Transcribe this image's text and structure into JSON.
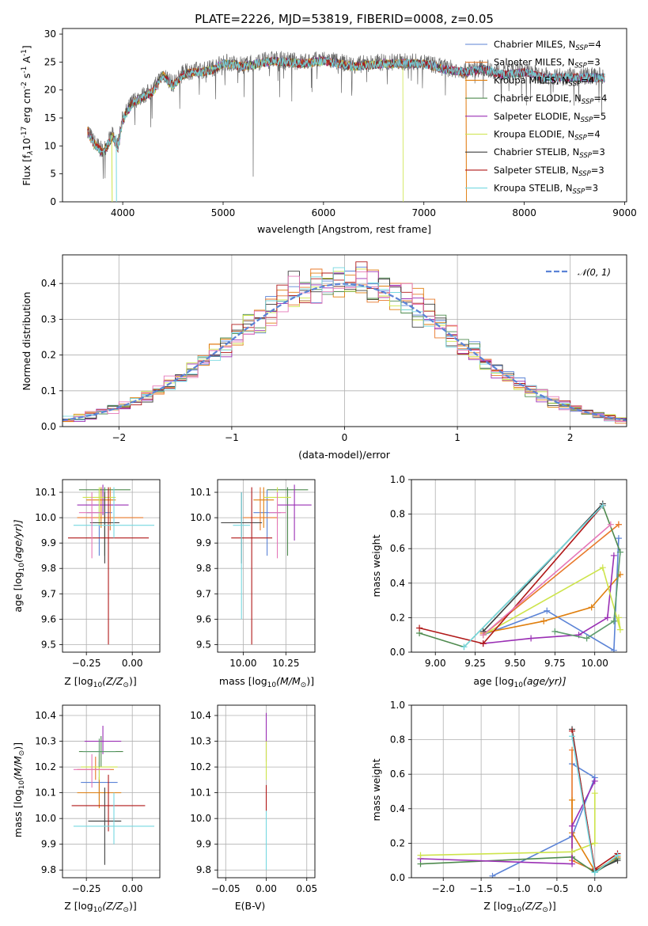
{
  "figure": {
    "title": "PLATE=2226, MJD=53819, FIBERID=0008, z=0.05"
  },
  "colors": {
    "Chabrier MILES": "#5b83d6",
    "Salpeter MILES": "#e8782a",
    "Kroupa MILES": "#e07f0e",
    "Chabrier ELODIE": "#4e8a4e",
    "Salpeter ELODIE": "#9a2fb4",
    "Kroupa ELODIE": "#cde44b",
    "Chabrier STELIB": "#3f3f3f",
    "Salpeter STELIB": "#b01818",
    "Kroupa STELIB": "#76d8e0",
    "normal": "#5b83d6",
    "hist_pink": "#e577b8"
  },
  "spectrum": {
    "xlabel": "wavelength [Angstrom, rest frame]",
    "ylabel_main": "Flux [f",
    "ylabel_rest": "10",
    "ylabel_exp": "-17",
    "ylabel_units": " erg cm",
    "ylabel_units_exp": "-2",
    "ylabel_s": " s",
    "ylabel_s_exp": "-1",
    "ylabel_A": " A",
    "ylabel_A_exp": "-1",
    "ylabel_end": "]",
    "legend": [
      {
        "name": "Chabrier MILES, N",
        "sub": "SSP",
        "suffix": "=4"
      },
      {
        "name": "Salpeter MILES, N",
        "sub": "SSP",
        "suffix": "=3"
      },
      {
        "name": "Kroupa MILES, N",
        "sub": "SSP",
        "suffix": "=4"
      },
      {
        "name": "Chabrier ELODIE, N",
        "sub": "SSP",
        "suffix": "=4"
      },
      {
        "name": "Salpeter ELODIE, N",
        "sub": "SSP",
        "suffix": "=5"
      },
      {
        "name": "Kroupa ELODIE, N",
        "sub": "SSP",
        "suffix": "=4"
      },
      {
        "name": "Chabrier STELIB, N",
        "sub": "SSP",
        "suffix": "=3"
      },
      {
        "name": "Salpeter STELIB, N",
        "sub": "SSP",
        "suffix": "=3"
      },
      {
        "name": "Kroupa STELIB, N",
        "sub": "SSP",
        "suffix": "=3"
      }
    ]
  },
  "residuals": {
    "xlabel": "(data-model)/error",
    "ylabel": "Normed distribution",
    "legend": "𝒩(0, 1)"
  },
  "small_labels": {
    "age_y": "age  [log",
    "age_y_sub": "10",
    "age_y_end": "(age/yr)]",
    "z_x": "Z [log",
    "z_x_sub": "10",
    "z_x_end": "(Z/Z",
    "z_x_close": ")]",
    "mass_x": "mass [log",
    "mass_x_sub": "10",
    "mass_x_end": "(M/M",
    "mass_x_close": ")]",
    "mw_y": "mass weight",
    "age_x": "age  [log",
    "age_x_sub": "10",
    "age_x_end": "(age/yr)]",
    "ebv_x": "E(B-V)",
    "mass_y": "mass [log",
    "mass_y_sub": "10",
    "mass_y_end": "(M/M",
    "mass_y_close": ")]",
    "z_x2": "Z [log",
    "z_x2_sub": "10",
    "z_x2_end": "(Z/Z",
    "z_x2_close": ")]"
  },
  "chart_data": [
    {
      "type": "line",
      "title": "PLATE=2226, MJD=53819, FIBERID=0008, z=0.05",
      "xlabel": "wavelength [Angstrom, rest frame]",
      "ylabel": "Flux [f_lambda 10^-17 erg cm^-2 s^-1 A^-1]",
      "xlim": [
        3400,
        9020
      ],
      "ylim": [
        0,
        31
      ],
      "xticks": [
        4000,
        5000,
        6000,
        7000,
        8000,
        9000
      ],
      "yticks": [
        0,
        5,
        10,
        15,
        20,
        25,
        30
      ],
      "grid": false,
      "legend_position": "top-right",
      "spectrum_envelope": {
        "x": [
          3650,
          3700,
          3800,
          3900,
          3950,
          4000,
          4100,
          4200,
          4300,
          4400,
          4500,
          4600,
          4700,
          4800,
          4900,
          5000,
          5200,
          5500,
          5800,
          6000,
          6300,
          6600,
          7000,
          7200,
          7400,
          7600,
          7800,
          8000,
          8200,
          8500,
          8800
        ],
        "y": [
          13,
          11,
          9,
          12,
          10,
          15,
          18,
          19,
          20,
          23,
          21,
          23,
          23.5,
          23.5,
          24,
          25,
          24.5,
          25.5,
          25,
          25.5,
          24.5,
          25,
          25,
          24,
          23.5,
          24,
          23,
          23.5,
          22.5,
          22.5,
          22.5
        ]
      },
      "model_cutoffs": [
        {
          "series": "Kroupa ELODIE",
          "x_end": 6790
        },
        {
          "series": "Kroupa MILES",
          "x_end": 7420
        },
        {
          "series": "Salpeter MILES",
          "x_end": 7420
        }
      ],
      "series": [
        {
          "name": "Chabrier MILES, N_SSP=4"
        },
        {
          "name": "Salpeter MILES, N_SSP=3"
        },
        {
          "name": "Kroupa MILES, N_SSP=4"
        },
        {
          "name": "Chabrier ELODIE, N_SSP=4"
        },
        {
          "name": "Salpeter ELODIE, N_SSP=5"
        },
        {
          "name": "Kroupa ELODIE, N_SSP=4"
        },
        {
          "name": "Chabrier STELIB, N_SSP=3"
        },
        {
          "name": "Salpeter STELIB, N_SSP=3"
        },
        {
          "name": "Kroupa STELIB, N_SSP=3"
        }
      ]
    },
    {
      "type": "line",
      "xlabel": "(data-model)/error",
      "ylabel": "Normed distribution",
      "xlim": [
        -2.5,
        2.5
      ],
      "ylim": [
        0,
        0.48
      ],
      "xticks": [
        -2,
        -1,
        0,
        1,
        2
      ],
      "yticks": [
        0.0,
        0.1,
        0.2,
        0.3,
        0.4
      ],
      "grid": true,
      "legend_position": "top-right",
      "series": [
        {
          "name": "N(0,1)",
          "style": "dashed",
          "kind": "gaussian",
          "mu": 0,
          "sigma": 1
        }
      ],
      "histograms": {
        "bin_width": 0.1,
        "x_start": -2.5,
        "note_series": "9 step histograms, one per model"
      }
    },
    {
      "type": "scatter",
      "xlabel": "Z [log10(Z/Zsun)]",
      "ylabel": "age [log10(age/yr)]",
      "xlim": [
        -0.38,
        0.15
      ],
      "ylim": [
        9.47,
        10.15
      ],
      "xticks": [
        -0.25,
        0.0
      ],
      "xticklabels": [
        "−0.25",
        "0.00"
      ],
      "yticks": [
        9.5,
        9.6,
        9.7,
        9.8,
        9.9,
        10.0,
        10.1
      ],
      "grid": true,
      "points": [
        {
          "series": "Chabrier MILES",
          "x": -0.18,
          "xerr": 0.07,
          "y": 10.02,
          "ylo": 9.85,
          "yhi": 10.11
        },
        {
          "series": "Salpeter MILES",
          "x": -0.12,
          "xerr": 0.18,
          "y": 10.0,
          "ylo": 9.95,
          "yhi": 10.12
        },
        {
          "series": "Kroupa MILES",
          "x": -0.17,
          "xerr": 0.08,
          "y": 10.07,
          "ylo": 9.96,
          "yhi": 10.12
        },
        {
          "series": "Chabrier ELODIE",
          "x": -0.15,
          "xerr": 0.14,
          "y": 10.11,
          "ylo": 9.85,
          "yhi": 10.12
        },
        {
          "series": "Salpeter ELODIE",
          "x": -0.16,
          "xerr": 0.14,
          "y": 10.05,
          "ylo": 10.01,
          "yhi": 10.13
        },
        {
          "series": "Kroupa ELODIE",
          "x": -0.18,
          "xerr": 0.09,
          "y": 10.08,
          "ylo": 9.97,
          "yhi": 10.12
        },
        {
          "series": "Chabrier STELIB",
          "x": -0.15,
          "xerr": 0.08,
          "y": 9.98,
          "ylo": 9.82,
          "yhi": 10.1
        },
        {
          "series": "Salpeter STELIB",
          "x": -0.13,
          "xerr": 0.22,
          "y": 9.92,
          "ylo": 9.5,
          "yhi": 10.12
        },
        {
          "series": "Kroupa STELIB",
          "x": -0.1,
          "xerr": 0.22,
          "y": 9.97,
          "ylo": 9.92,
          "yhi": 10.12
        },
        {
          "series": "Salpeter MILES pink",
          "x": -0.22,
          "xerr": 0.07,
          "y": 10.02,
          "ylo": 9.84,
          "yhi": 10.1
        }
      ]
    },
    {
      "type": "scatter",
      "xlabel": "mass [log10(M/Msun)]",
      "xlim": [
        9.85,
        10.42
      ],
      "ylim": [
        9.47,
        10.15
      ],
      "xticks": [
        10.0,
        10.25
      ],
      "xticklabels": [
        "10.00",
        "10.25"
      ],
      "yticks": [
        9.5,
        9.6,
        9.7,
        9.8,
        9.9,
        10.0,
        10.1
      ],
      "grid": true,
      "points": [
        {
          "series": "Chabrier MILES",
          "x": 10.14,
          "xerr": 0.08,
          "y": 10.02,
          "ylo": 9.85,
          "yhi": 10.11
        },
        {
          "series": "Salpeter MILES",
          "x": 10.1,
          "xerr": 0.1,
          "y": 10.0,
          "ylo": 9.95,
          "yhi": 10.12
        },
        {
          "series": "Kroupa MILES",
          "x": 10.12,
          "xerr": 0.06,
          "y": 10.07,
          "ylo": 9.96,
          "yhi": 10.12
        },
        {
          "series": "Chabrier ELODIE",
          "x": 10.26,
          "xerr": 0.12,
          "y": 10.11,
          "ylo": 9.85,
          "yhi": 10.12
        },
        {
          "series": "Salpeter ELODIE",
          "x": 10.3,
          "xerr": 0.1,
          "y": 10.05,
          "ylo": 9.91,
          "yhi": 10.13
        },
        {
          "series": "Kroupa ELODIE",
          "x": 10.2,
          "xerr": 0.08,
          "y": 10.08,
          "ylo": 9.97,
          "yhi": 10.12
        },
        {
          "series": "Chabrier STELIB",
          "x": 9.99,
          "xerr": 0.12,
          "y": 9.98,
          "ylo": 9.82,
          "yhi": 10.1
        },
        {
          "series": "Salpeter STELIB",
          "x": 10.05,
          "xerr": 0.12,
          "y": 9.92,
          "ylo": 9.5,
          "yhi": 10.12
        },
        {
          "series": "Kroupa STELIB",
          "x": 9.99,
          "xerr": 0.05,
          "y": 9.97,
          "ylo": 9.6,
          "yhi": 10.1
        },
        {
          "series": "pink",
          "x": 10.2,
          "xerr": 0.05,
          "y": 10.02,
          "ylo": 9.84,
          "yhi": 10.1
        }
      ]
    },
    {
      "type": "line",
      "xlabel": "age [log10(age/yr)]",
      "ylabel": "mass weight",
      "xlim": [
        8.85,
        10.2
      ],
      "ylim": [
        0,
        1.0
      ],
      "xticks": [
        9.0,
        9.25,
        9.5,
        9.75,
        10.0
      ],
      "xticklabels": [
        "9.00",
        "9.25",
        "9.50",
        "9.75",
        "10.00"
      ],
      "yticks": [
        0.0,
        0.2,
        0.4,
        0.6,
        0.8,
        1.0
      ],
      "grid": true,
      "series": [
        {
          "name": "Chabrier MILES",
          "x": [
            9.3,
            9.7,
            10.12,
            10.15
          ],
          "y": [
            0.1,
            0.24,
            0.01,
            0.66
          ]
        },
        {
          "name": "Salpeter MILES",
          "x": [
            9.3,
            10.15,
            10.15
          ],
          "y": [
            0.1,
            0.74,
            0.74
          ]
        },
        {
          "name": "Kroupa MILES",
          "x": [
            9.3,
            9.68,
            9.98,
            10.16
          ],
          "y": [
            0.11,
            0.18,
            0.26,
            0.45
          ]
        },
        {
          "name": "Chabrier ELODIE",
          "x": [
            8.9,
            9.18,
            10.05,
            10.16
          ],
          "y": [
            0.11,
            0.03,
            0.85,
            0.58
          ]
        },
        {
          "name": "Salpeter ELODIE",
          "x": [
            9.3,
            9.6,
            9.9,
            10.08,
            10.12
          ],
          "y": [
            0.05,
            0.08,
            0.1,
            0.2,
            0.56
          ]
        },
        {
          "name": "Kroupa ELODIE",
          "x": [
            9.3,
            10.05,
            10.16,
            10.15
          ],
          "y": [
            0.1,
            0.49,
            0.13,
            0.2
          ]
        },
        {
          "name": "Chabrier STELIB",
          "x": [
            9.3,
            10.05
          ],
          "y": [
            0.12,
            0.86
          ]
        },
        {
          "name": "Salpeter STELIB",
          "x": [
            8.9,
            9.3,
            10.05
          ],
          "y": [
            0.14,
            0.05,
            0.85
          ]
        },
        {
          "name": "Kroupa STELIB",
          "x": [
            9.18,
            10.05
          ],
          "y": [
            0.03,
            0.85
          ]
        },
        {
          "name": "Green2",
          "x": [
            9.75,
            9.95,
            10.12,
            10.16
          ],
          "y": [
            0.12,
            0.08,
            0.18,
            0.58
          ]
        },
        {
          "name": "Pink",
          "x": [
            9.3,
            10.1
          ],
          "y": [
            0.1,
            0.74
          ]
        }
      ]
    },
    {
      "type": "scatter",
      "xlabel": "Z [log10(Z/Zsun)]",
      "ylabel": "mass [log10(M/Msun)]",
      "xlim": [
        -0.38,
        0.15
      ],
      "ylim": [
        9.77,
        10.44
      ],
      "xticks": [
        -0.25,
        0.0
      ],
      "xticklabels": [
        "−0.25",
        "0.00"
      ],
      "yticks": [
        9.8,
        9.9,
        10.0,
        10.1,
        10.2,
        10.3,
        10.4
      ],
      "grid": true,
      "points": [
        {
          "series": "Chabrier MILES",
          "x": -0.18,
          "xerr": 0.1,
          "y": 10.14,
          "ylo": 10.07,
          "yhi": 10.22
        },
        {
          "series": "Salpeter MILES",
          "x": -0.2,
          "xerr": 0.1,
          "y": 10.19,
          "ylo": 10.15,
          "yhi": 10.24
        },
        {
          "series": "Kroupa MILES",
          "x": -0.18,
          "xerr": 0.12,
          "y": 10.1,
          "ylo": 10.04,
          "yhi": 10.16
        },
        {
          "series": "Chabrier ELODIE",
          "x": -0.17,
          "xerr": 0.12,
          "y": 10.26,
          "ylo": 10.2,
          "yhi": 10.32
        },
        {
          "series": "Salpeter ELODIE",
          "x": -0.16,
          "xerr": 0.1,
          "y": 10.3,
          "ylo": 10.25,
          "yhi": 10.36
        },
        {
          "series": "Kroupa ELODIE",
          "x": -0.18,
          "xerr": 0.1,
          "y": 10.2,
          "ylo": 10.15,
          "yhi": 10.25
        },
        {
          "series": "Chabrier STELIB",
          "x": -0.15,
          "xerr": 0.09,
          "y": 9.99,
          "ylo": 9.82,
          "yhi": 10.12
        },
        {
          "series": "Salpeter STELIB",
          "x": -0.13,
          "xerr": 0.2,
          "y": 10.05,
          "ylo": 9.95,
          "yhi": 10.17
        },
        {
          "series": "Kroupa STELIB",
          "x": -0.1,
          "xerr": 0.22,
          "y": 9.97,
          "ylo": 9.9,
          "yhi": 10.1
        },
        {
          "series": "pink",
          "x": -0.22,
          "xerr": 0.1,
          "y": 10.19,
          "ylo": 10.12,
          "yhi": 10.25
        },
        {
          "series": "green2",
          "x": -0.18,
          "xerr": 0.09,
          "y": 10.26,
          "ylo": 10.2,
          "yhi": 10.31
        }
      ]
    },
    {
      "type": "scatter",
      "xlabel": "E(B-V)",
      "xlim": [
        -0.06,
        0.06
      ],
      "ylim": [
        9.77,
        10.44
      ],
      "xticks": [
        -0.05,
        0.0,
        0.05
      ],
      "xticklabels": [
        "−0.05",
        "0.00",
        "0.05"
      ],
      "yticks": [
        9.8,
        9.9,
        10.0,
        10.1,
        10.2,
        10.3,
        10.4
      ],
      "grid": true,
      "points": [
        {
          "series": "Salpeter ELODIE",
          "x": 0.0,
          "ylo": 10.22,
          "yhi": 10.41
        },
        {
          "series": "Kroupa ELODIE",
          "x": 0.0,
          "ylo": 10.15,
          "yhi": 10.3
        },
        {
          "series": "Salpeter STELIB",
          "x": 0.0,
          "ylo": 10.03,
          "yhi": 10.13
        },
        {
          "series": "Kroupa STELIB",
          "x": 0.0,
          "ylo": 9.8,
          "yhi": 10.03
        }
      ]
    },
    {
      "type": "line",
      "xlabel": "Z [log10(Z/Zsun)]",
      "ylabel": "mass weight",
      "xlim": [
        -2.42,
        0.42
      ],
      "ylim": [
        0,
        1.0
      ],
      "xticks": [
        -2.0,
        -1.5,
        -1.0,
        -0.5,
        0.0
      ],
      "xticklabels": [
        "−2.0",
        "−1.5",
        "−1.0",
        "−0.5",
        "0.0"
      ],
      "yticks": [
        0.0,
        0.2,
        0.4,
        0.6,
        0.8,
        1.0
      ],
      "grid": true,
      "series": [
        {
          "name": "Chabrier MILES",
          "x": [
            -1.35,
            -0.3,
            0.0,
            -0.3
          ],
          "y": [
            0.01,
            0.24,
            0.58,
            0.66
          ]
        },
        {
          "name": "Salpeter MILES",
          "x": [
            -0.3,
            -0.3,
            0.0
          ],
          "y": [
            0.74,
            0.1,
            0.04
          ]
        },
        {
          "name": "Kroupa MILES",
          "x": [
            -0.3,
            -0.3,
            0.0,
            0.3
          ],
          "y": [
            0.45,
            0.26,
            0.04,
            0.12
          ]
        },
        {
          "name": "Chabrier ELODIE",
          "x": [
            -2.3,
            -0.3,
            0.0,
            0.3
          ],
          "y": [
            0.08,
            0.12,
            0.03,
            0.11
          ]
        },
        {
          "name": "Salpeter ELODIE",
          "x": [
            -2.3,
            -0.3,
            -0.3,
            0.0
          ],
          "y": [
            0.11,
            0.08,
            0.3,
            0.56
          ]
        },
        {
          "name": "Kroupa ELODIE",
          "x": [
            -2.3,
            -0.3,
            0.0,
            0.0
          ],
          "y": [
            0.13,
            0.15,
            0.2,
            0.49
          ]
        },
        {
          "name": "Chabrier STELIB",
          "x": [
            -0.3,
            0.0,
            0.3
          ],
          "y": [
            0.86,
            0.04,
            0.1
          ]
        },
        {
          "name": "Salpeter STELIB",
          "x": [
            -0.3,
            0.0,
            0.3
          ],
          "y": [
            0.85,
            0.05,
            0.14
          ]
        },
        {
          "name": "Kroupa STELIB",
          "x": [
            -0.3,
            0.0,
            0.3
          ],
          "y": [
            0.82,
            0.03,
            0.13
          ]
        }
      ]
    }
  ]
}
